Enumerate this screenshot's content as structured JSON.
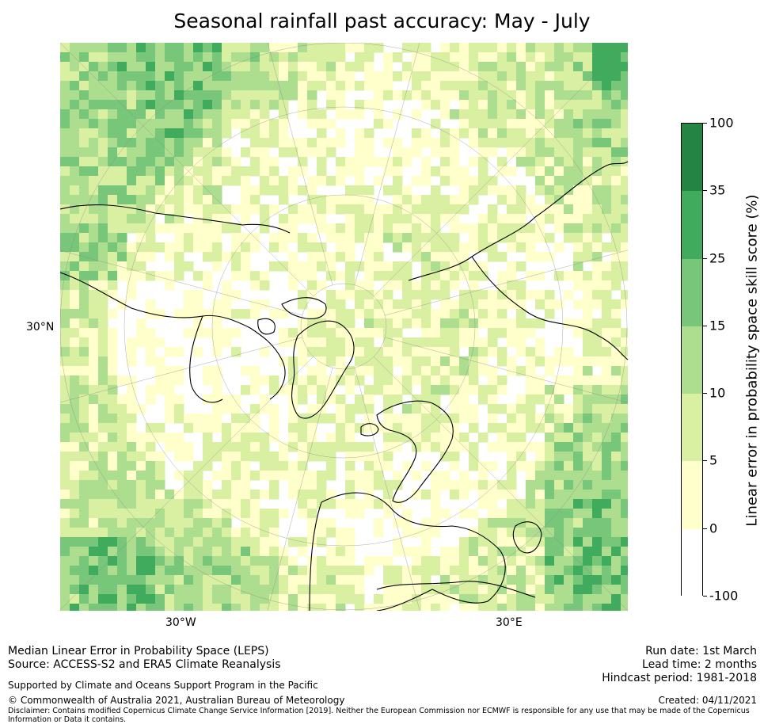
{
  "title": "Seasonal rainfall past accuracy: May - July",
  "map": {
    "lat_label_left": "30°N",
    "lon_label_w": "30°W",
    "lon_label_e": "30°E",
    "projection": "north polar stereographic",
    "background_color": "#ffffff",
    "coastline_color": "#000000"
  },
  "colorbar": {
    "label": "Linear error in probability space skill score (%)",
    "ticks": [
      "100",
      "35",
      "25",
      "15",
      "10",
      "5",
      "0",
      "-100"
    ],
    "bins": [
      {
        "range": "35 to 100",
        "color": "#238443"
      },
      {
        "range": "25 to 35",
        "color": "#41ab5d"
      },
      {
        "range": "15 to 25",
        "color": "#78c679"
      },
      {
        "range": "10 to 15",
        "color": "#addd8e"
      },
      {
        "range": "5 to 10",
        "color": "#d9f0a3"
      },
      {
        "range": "0 to 5",
        "color": "#ffffcc"
      },
      {
        "range": "-100 to 0",
        "color": "#ffffff"
      }
    ]
  },
  "footer": {
    "left_line1": "Median Linear Error in Probability Space (LEPS)",
    "left_line2": "Source: ACCESS-S2 and ERA5 Climate Reanalysis",
    "supported": "Supported by Climate and Oceans Support Program in the Pacific",
    "copyright": "© Commonwealth of Australia 2021, Australian Bureau of Meteorology",
    "disclaimer": "Disclaimer: Contains modified Copernicus Climate Change Service Information [2019]. Neither the European Commission nor ECMWF is responsible for any use that may be made of the Copernicus Information or Data it contains.",
    "run_date": "Run date: 1st March",
    "lead_time": "Lead time: 2 months",
    "hindcast": "Hindcast period: 1981-2018",
    "created": "Created: 04/11/2021"
  }
}
